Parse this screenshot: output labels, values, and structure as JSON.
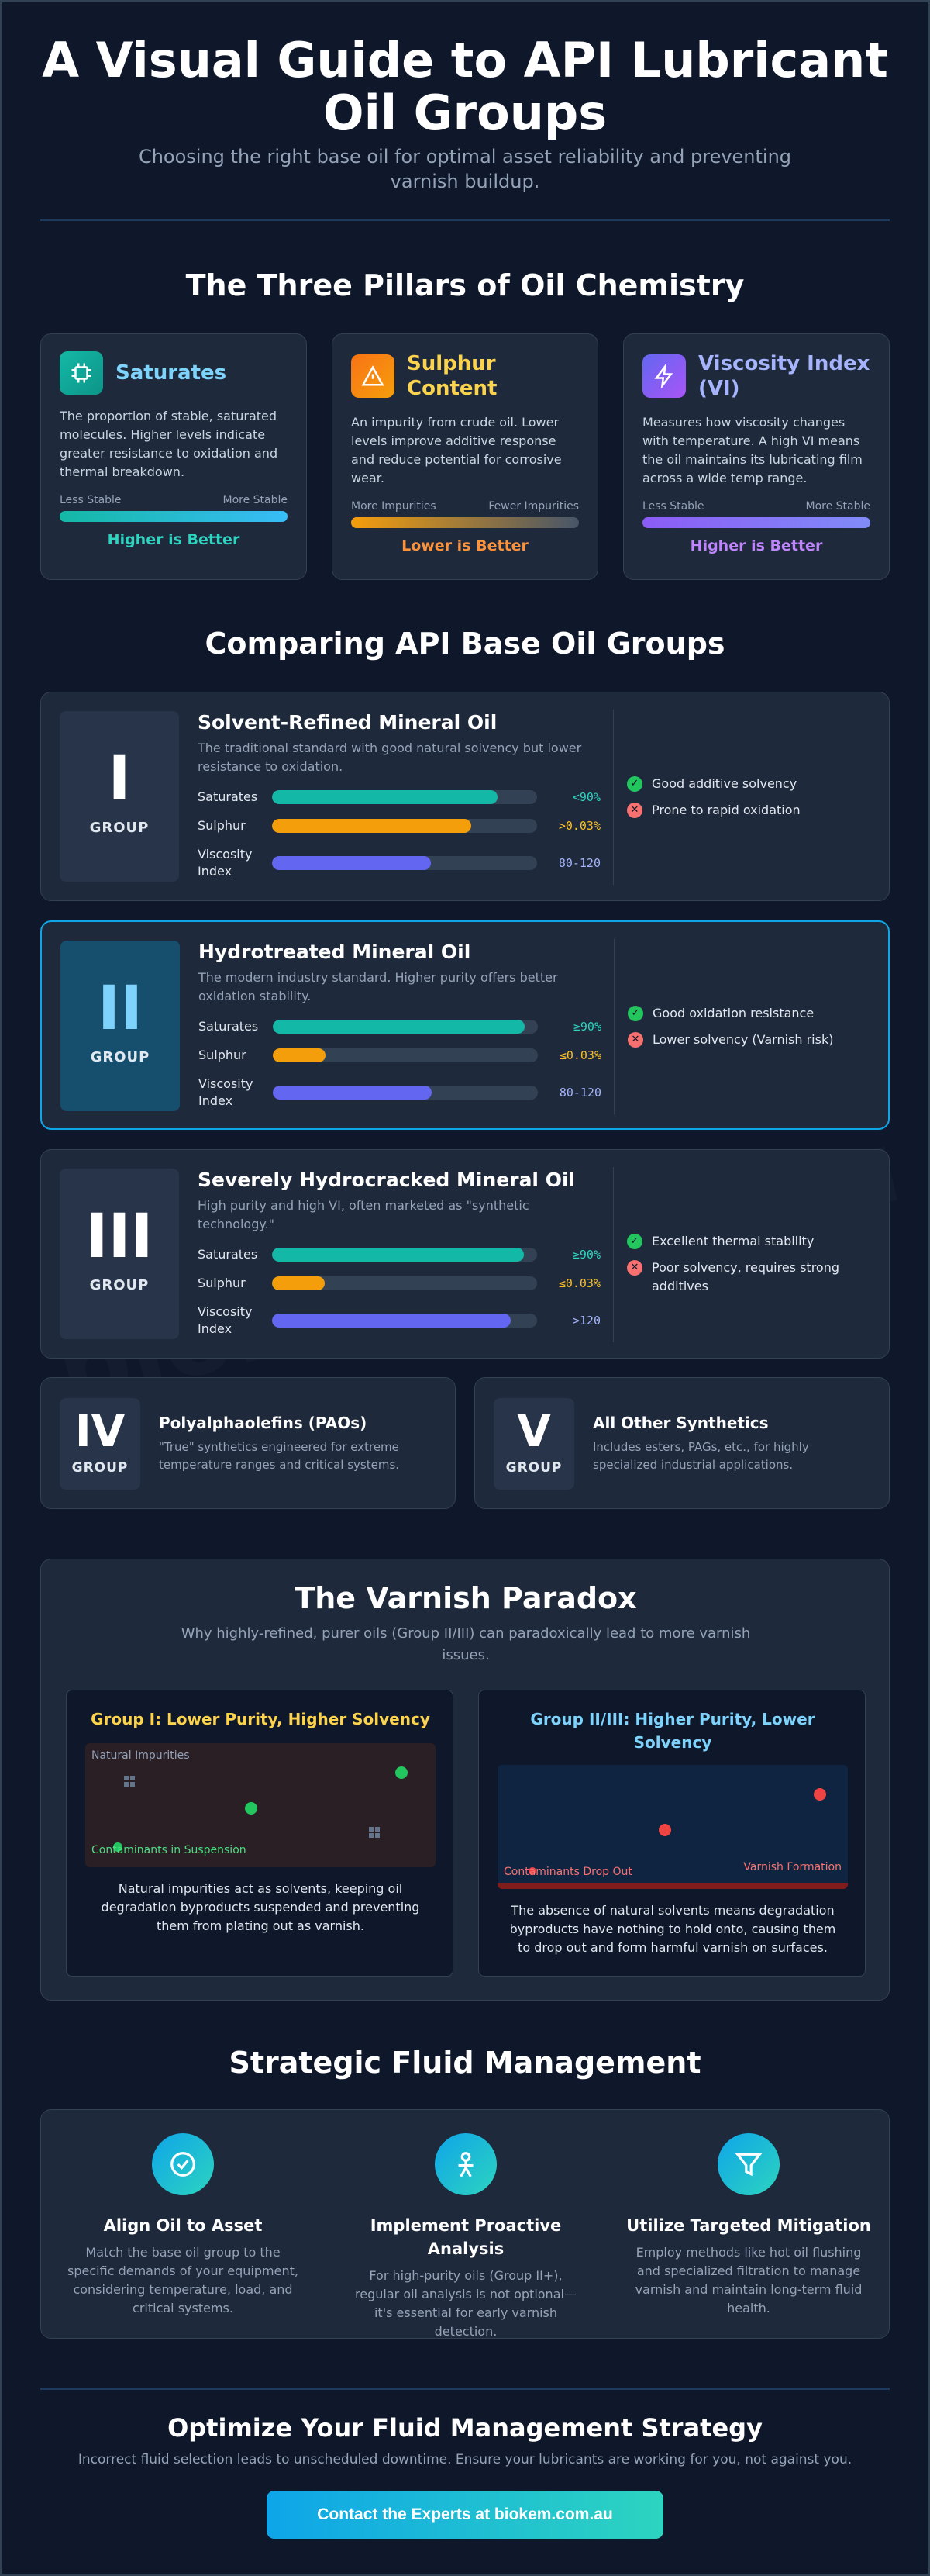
{
  "header": {
    "title": "A Visual Guide to API Lubricant Oil Groups",
    "subtitle": "Choosing the right base oil for optimal asset reliability and preventing varnish buildup."
  },
  "pillars": {
    "section_title": "The Three Pillars of Oil Chemistry",
    "items": [
      {
        "title": "Saturates",
        "icon": "chip-icon",
        "color": "#7dd3fc",
        "desc": "The proportion of stable, saturated molecules. Higher levels indicate greater resistance to oxidation and thermal breakdown.",
        "scale_left": "Less Stable",
        "scale_right": "More Stable",
        "verdict": "Higher is Better",
        "verdict_color": "#2dd4bf"
      },
      {
        "title": "Sulphur Content",
        "icon": "warning-icon",
        "color": "#fcd34d",
        "desc": "An impurity from crude oil. Lower levels improve additive response and reduce potential for corrosive wear.",
        "scale_left": "More Impurities",
        "scale_right": "Fewer Impurities",
        "verdict": "Lower is Better",
        "verdict_color": "#fb923c"
      },
      {
        "title": "Viscosity Index (VI)",
        "icon": "lightning-icon",
        "color": "#a5b4fc",
        "desc": "Measures how viscosity changes with temperature. A high VI means the oil maintains its lubricating film across a wide temp range.",
        "scale_left": "Less Stable",
        "scale_right": "More Stable",
        "verdict": "Higher is Better",
        "verdict_color": "#c084fc"
      }
    ]
  },
  "groups": {
    "section_title": "Comparing API Base Oil Groups",
    "group_label": "GROUP",
    "metric_labels": {
      "saturates": "Saturates",
      "sulphur": "Sulphur",
      "vi": "Viscosity Index"
    },
    "items": [
      {
        "numeral": "I",
        "title": "Solvent-Refined Mineral Oil",
        "desc": "The traditional standard with good natural solvency but lower resistance to oxidation.",
        "saturates": {
          "value": "<90%",
          "level": 0.85
        },
        "sulphur": {
          "value": ">0.03%",
          "level": 0.75
        },
        "vi": {
          "value": "80-120",
          "level": 0.6
        },
        "pro": "Good additive solvency",
        "con": "Prone to rapid oxidation"
      },
      {
        "numeral": "II",
        "title": "Hydrotreated Mineral Oil",
        "desc": "The modern industry standard. Higher purity offers better oxidation stability.",
        "saturates": {
          "value": "≥90%",
          "level": 0.95
        },
        "sulphur": {
          "value": "≤0.03%",
          "level": 0.2
        },
        "vi": {
          "value": "80-120",
          "level": 0.6
        },
        "pro": "Good oxidation resistance",
        "con": "Lower solvency (Varnish risk)"
      },
      {
        "numeral": "III",
        "title": "Severely Hydrocracked Mineral Oil",
        "desc": "High purity and high VI, often marketed as \"synthetic technology.\"",
        "saturates": {
          "value": "≥90%",
          "level": 0.95
        },
        "sulphur": {
          "value": "≤0.03%",
          "level": 0.2
        },
        "vi": {
          "value": ">120",
          "level": 0.9
        },
        "pro": "Excellent thermal stability",
        "con": "Poor solvency, requires strong additives"
      }
    ],
    "small": [
      {
        "numeral": "IV",
        "title": "Polyalphaolefins (PAOs)",
        "desc": "\"True\" synthetics engineered for extreme temperature ranges and critical systems."
      },
      {
        "numeral": "V",
        "title": "All Other Synthetics",
        "desc": "Includes esters, PAGs, etc., for highly specialized industrial applications."
      }
    ]
  },
  "varnish": {
    "title": "The Varnish Paradox",
    "subtitle": "Why highly-refined, purer oils (Group II/III) can paradoxically lead to more varnish issues.",
    "left": {
      "title": "Group I: Lower Purity, Higher Solvency",
      "top_label": "Natural Impurities",
      "bottom_label": "Contaminants in Suspension",
      "text": "Natural impurities act as solvents, keeping oil degradation byproducts suspended and preventing them from plating out as varnish."
    },
    "right": {
      "title": "Group II/III: Higher Purity, Lower Solvency",
      "left_label": "Contaminants Drop Out",
      "right_label": "Varnish Formation",
      "text": "The absence of natural solvents means degradation byproducts have nothing to hold onto, causing them to drop out and form harmful varnish on surfaces."
    }
  },
  "strategy": {
    "section_title": "Strategic Fluid Management",
    "items": [
      {
        "title": "Align Oil to Asset",
        "icon": "check-circle-icon",
        "desc": "Match the base oil group to the specific demands of your equipment, considering temperature, load, and critical systems."
      },
      {
        "title": "Implement Proactive Analysis",
        "icon": "person-analysis-icon",
        "desc": "For high-purity oils (Group II+), regular oil analysis is not optional—it's essential for early varnish detection."
      },
      {
        "title": "Utilize Targeted Mitigation",
        "icon": "filter-icon",
        "desc": "Employ methods like hot oil flushing and specialized filtration to manage varnish and maintain long-term fluid health."
      }
    ]
  },
  "footer": {
    "title": "Optimize Your Fluid Management Strategy",
    "subtitle": "Incorrect fluid selection leads to unscheduled downtime. Ensure your lubricants are working for you, not against you.",
    "cta": "Contact the Experts at biokem.com.au"
  },
  "watermark": "biokem.com.au",
  "colors": {
    "teal": "#14b8a6",
    "amber": "#f59e0b",
    "indigo": "#6366f1",
    "good": "#22c55e",
    "bad": "#f87171",
    "accent_border": "#0ea5e9"
  }
}
